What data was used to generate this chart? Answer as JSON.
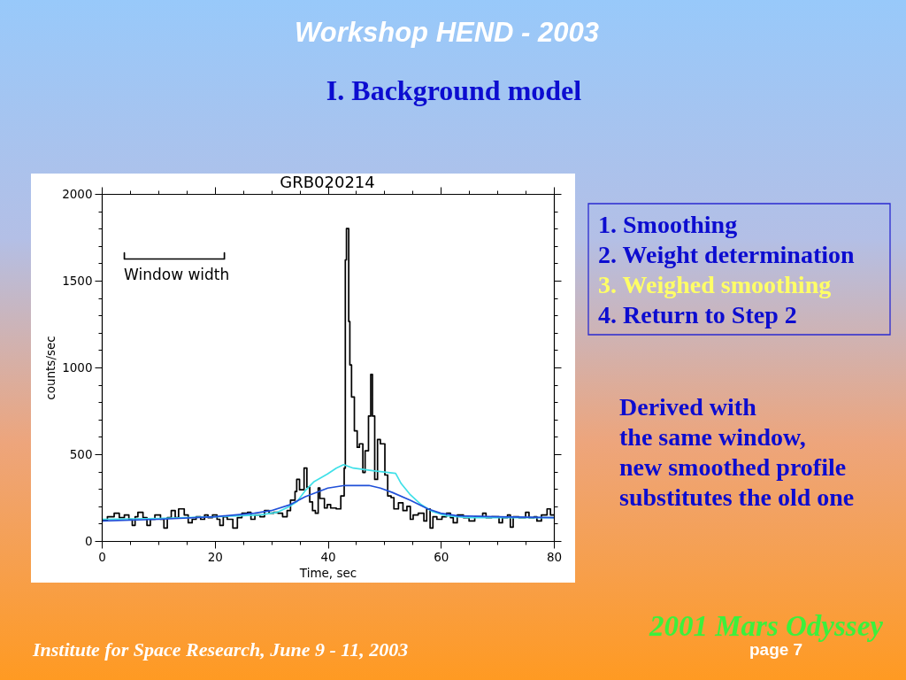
{
  "chart_data": [
    {
      "type": "other",
      "title": "Workshop HEND - 2003",
      "subtitle": "I. Background model"
    },
    {
      "type": "step",
      "title": "GRB020214",
      "xlabel": "Time, sec",
      "ylabel": "counts/sec",
      "xlim": [
        0,
        80
      ],
      "ylim": [
        0,
        2000
      ],
      "xticks": [
        0,
        {
          "value": 5,
          "label": null
        },
        {
          "value": 10,
          "label": null
        },
        {
          "value": 15,
          "label": null
        },
        20,
        {
          "value": 25,
          "label": null
        },
        {
          "value": 30,
          "label": null
        },
        {
          "value": 35,
          "label": null
        },
        40,
        {
          "value": 45,
          "label": null
        },
        {
          "value": 50,
          "label": null
        },
        {
          "value": 55,
          "label": null
        },
        60,
        {
          "value": 65,
          "label": null
        },
        {
          "value": 70,
          "label": null
        },
        {
          "value": 75,
          "label": null
        },
        80
      ],
      "yticks": [
        0,
        {
          "value": 100,
          "label": null
        },
        {
          "value": 200,
          "label": null
        },
        {
          "value": 300,
          "label": null
        },
        {
          "value": 400,
          "label": null
        },
        500,
        {
          "value": 600,
          "label": null
        },
        {
          "value": 700,
          "label": null
        },
        {
          "value": 800,
          "label": null
        },
        {
          "value": 900,
          "label": null
        },
        1000,
        {
          "value": 1100,
          "label": null
        },
        {
          "value": 1200,
          "label": null
        },
        {
          "value": 1300,
          "label": null
        },
        {
          "value": 1400,
          "label": null
        },
        1500,
        {
          "value": 1600,
          "label": null
        },
        {
          "value": 1700,
          "label": null
        },
        {
          "value": 1800,
          "label": null
        },
        {
          "value": 1900,
          "label": null
        },
        2000
      ],
      "series": [
        {
          "color": "#000000",
          "x": [
            0,
            1,
            2.2,
            3.1,
            4,
            4.8,
            5.4,
            5.9,
            6.4,
            7.3,
            8,
            8.6,
            9.4,
            10.4,
            11,
            11.6,
            12.3,
            13,
            13.6,
            14.6,
            15.3,
            16,
            16.7,
            17.5,
            18.2,
            18.8,
            19.6,
            20.4,
            20.9,
            21.5,
            22.2,
            23.2,
            24,
            24.8,
            25.8,
            26.4,
            27.1,
            28,
            28.8,
            29.6,
            30.4,
            31.2,
            32,
            32.8,
            33.4,
            34.2,
            34.5,
            35,
            35.8,
            36.3,
            36.8,
            37.3,
            37.8,
            38.3,
            38.6,
            39.4,
            39.9,
            40.5,
            41.5,
            42.3,
            42.9,
            43.1,
            43.3,
            43.7,
            43.9,
            44.2,
            44.7,
            45.2,
            45.6,
            46.2,
            46.6,
            47.2,
            47.6,
            47.9,
            48.3,
            48.8,
            49.3,
            50.1,
            50.6,
            51.2,
            51.7,
            52.5,
            53.3,
            54,
            54.6,
            55.1,
            56,
            57,
            57.5,
            58.1,
            58.6,
            59.3,
            60.2,
            61,
            61.7,
            62.2,
            62.9,
            64,
            65,
            66,
            67.4,
            68,
            69,
            70.3,
            70.9,
            71.8,
            72.3,
            72.8,
            73.8,
            75,
            75.6,
            76.5,
            77,
            77.8,
            78.8,
            79.4,
            80
          ],
          "values": [
            120,
            140,
            160,
            135,
            150,
            125,
            90,
            140,
            165,
            135,
            90,
            125,
            150,
            125,
            75,
            135,
            175,
            135,
            185,
            150,
            105,
            125,
            140,
            125,
            150,
            135,
            150,
            125,
            90,
            140,
            125,
            75,
            135,
            160,
            165,
            125,
            150,
            140,
            175,
            160,
            165,
            160,
            140,
            175,
            235,
            285,
            355,
            295,
            420,
            310,
            225,
            175,
            160,
            305,
            245,
            190,
            210,
            190,
            185,
            260,
            420,
            1620,
            1800,
            1265,
            1015,
            830,
            635,
            540,
            560,
            395,
            520,
            720,
            960,
            720,
            355,
            585,
            560,
            380,
            260,
            250,
            185,
            220,
            175,
            200,
            125,
            150,
            160,
            115,
            185,
            75,
            140,
            125,
            140,
            160,
            135,
            105,
            150,
            135,
            115,
            140,
            160,
            135,
            140,
            105,
            135,
            150,
            80,
            140,
            135,
            165,
            135,
            140,
            115,
            150,
            185,
            150,
            150
          ]
        },
        {
          "type": "line",
          "color": "#40e0e8",
          "x": [
            0,
            10,
            20,
            28,
            31,
            33,
            34.5,
            36,
            37.5,
            39.9,
            41.5,
            42.8,
            44.5,
            48,
            52,
            53,
            54.5,
            56.5,
            58.5,
            61,
            65,
            80
          ],
          "values": [
            125,
            130,
            140,
            150,
            165,
            195,
            225,
            290,
            340,
            385,
            420,
            440,
            420,
            405,
            390,
            330,
            270,
            210,
            170,
            145,
            135,
            135
          ]
        },
        {
          "type": "line",
          "color": "#2050d8",
          "x": [
            0,
            10,
            20,
            27,
            30,
            33.4,
            36,
            40,
            43,
            47.3,
            49.3,
            51.4,
            54.6,
            57.7,
            60,
            63,
            70,
            80
          ],
          "values": [
            115,
            125,
            140,
            160,
            175,
            210,
            255,
            305,
            320,
            320,
            305,
            280,
            235,
            185,
            160,
            145,
            140,
            135
          ]
        },
        {
          "type": "line",
          "color": "#000000",
          "x": [
            4,
            4,
            21.7,
            21.7
          ],
          "values": [
            1660,
            1625,
            1625,
            1660
          ]
        }
      ],
      "annotations": [
        "Window width"
      ]
    },
    {
      "type": "other",
      "annotations": [
        "1. Smoothing",
        "2. Weight determination",
        "3. Weighed smoothing",
        "4. Return to Step 2"
      ]
    },
    {
      "type": "other",
      "annotations": [
        "Derived with",
        "the same window,",
        "new smoothed profile",
        "substitutes the old one"
      ]
    },
    {
      "type": "other",
      "annotations": [
        "2001 Mars Odyssey",
        "Institute for Space Research, June 9 - 11, 2003",
        "page 7"
      ]
    }
  ]
}
